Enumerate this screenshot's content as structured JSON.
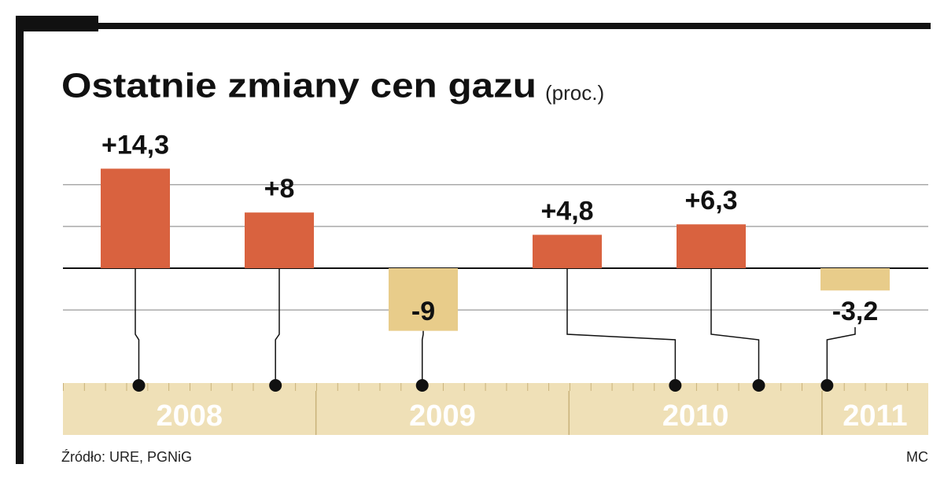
{
  "chart_data": {
    "type": "bar",
    "title": "Ostatnie zmiany cen gazu",
    "subtitle": "(proc.)",
    "values": [
      14.3,
      8,
      -9,
      4.8,
      6.3,
      -3.2
    ],
    "value_labels": [
      "+14,3",
      "+8",
      "-9",
      "+4,8",
      "+6,3",
      "-3,2"
    ],
    "colors": [
      "#d9623f",
      "#d9623f",
      "#e8cc8a",
      "#d9623f",
      "#d9623f",
      "#e8cc8a"
    ],
    "x": [
      2008.3,
      2008.84,
      2009.42,
      2010.42,
      2010.75,
      2011.02
    ],
    "xlim": [
      2008,
      2011.42
    ],
    "xticks": [
      2008,
      2009,
      2010,
      2011
    ],
    "ylim": [
      -16,
      22
    ],
    "yticks": [
      -6,
      0,
      6,
      12
    ],
    "grid": true,
    "source": "Źródło: URE, PGNiG",
    "credit": "MC"
  }
}
